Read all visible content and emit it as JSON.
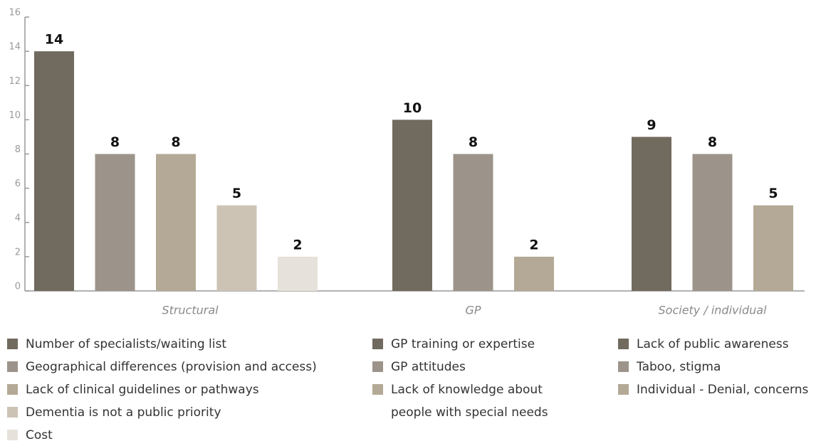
{
  "chart_data": {
    "type": "bar",
    "ylim": [
      0,
      16
    ],
    "yticks": [
      0,
      2,
      4,
      6,
      8,
      10,
      12,
      14,
      16
    ],
    "groups": [
      {
        "category": "Structural",
        "bars": [
          {
            "name": "Number of specialists/waiting list",
            "value": 14,
            "color": "#716a5e"
          },
          {
            "name": "Geographical differences (provision and access)",
            "value": 8,
            "color": "#9c948a"
          },
          {
            "name": "Lack of clinical guidelines or pathways",
            "value": 8,
            "color": "#b4a996"
          },
          {
            "name": "Dementia is not a public priority",
            "value": 5,
            "color": "#cdc3b4"
          },
          {
            "name": "Cost",
            "value": 2,
            "color": "#e6e1da"
          }
        ]
      },
      {
        "category": "GP",
        "bars": [
          {
            "name": "GP training or expertise",
            "value": 10,
            "color": "#716a5e"
          },
          {
            "name": "GP attitudes",
            "value": 8,
            "color": "#9c948a"
          },
          {
            "name": "Lack of knowledge about people with special needs",
            "value": 2,
            "color": "#b4a996"
          }
        ]
      },
      {
        "category": "Society / individual",
        "bars": [
          {
            "name": "Lack of public awareness",
            "value": 9,
            "color": "#716a5e"
          },
          {
            "name": "Taboo, stigma",
            "value": 8,
            "color": "#9c948a"
          },
          {
            "name": "Individual - Denial, concerns",
            "value": 5,
            "color": "#b4a996"
          }
        ]
      }
    ]
  }
}
